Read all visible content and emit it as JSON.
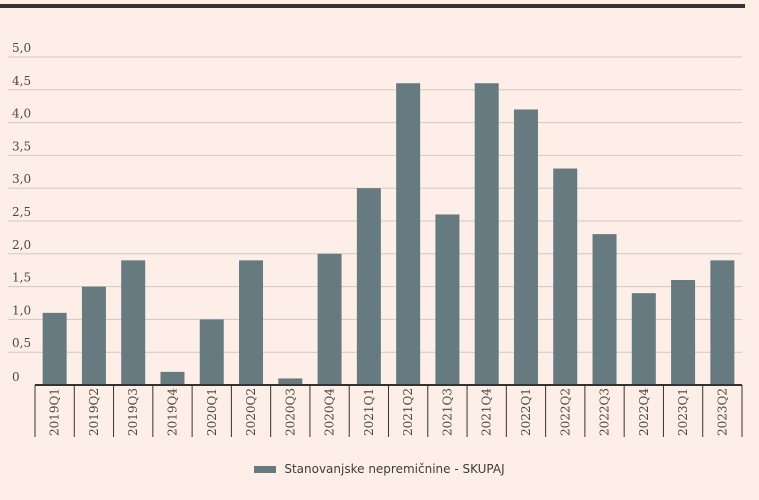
{
  "chart_data": {
    "type": "bar",
    "categories": [
      "2019Q1",
      "2019Q2",
      "2019Q3",
      "2019Q4",
      "2020Q1",
      "2020Q2",
      "2020Q3",
      "2020Q4",
      "2021Q1",
      "2021Q2",
      "2021Q3",
      "2021Q4",
      "2022Q1",
      "2022Q2",
      "2022Q3",
      "2022Q4",
      "2023Q1",
      "2023Q2"
    ],
    "series": [
      {
        "name": "Stanovanjske nepremičnine - SKUPAJ",
        "values": [
          1.1,
          1.5,
          1.9,
          0.2,
          1.0,
          1.9,
          0.1,
          2.0,
          3.0,
          4.6,
          2.6,
          4.6,
          4.2,
          3.3,
          2.3,
          1.4,
          1.6,
          1.9
        ],
        "color": "#657b7f"
      }
    ],
    "yticks": [
      "0",
      "0,5",
      "1,0",
      "1,5",
      "2,0",
      "2,5",
      "3,0",
      "3,5",
      "4,0",
      "4,5",
      "5,0"
    ],
    "ylim": [
      0,
      5.0
    ],
    "grid": true,
    "legend_position": "bottom"
  }
}
